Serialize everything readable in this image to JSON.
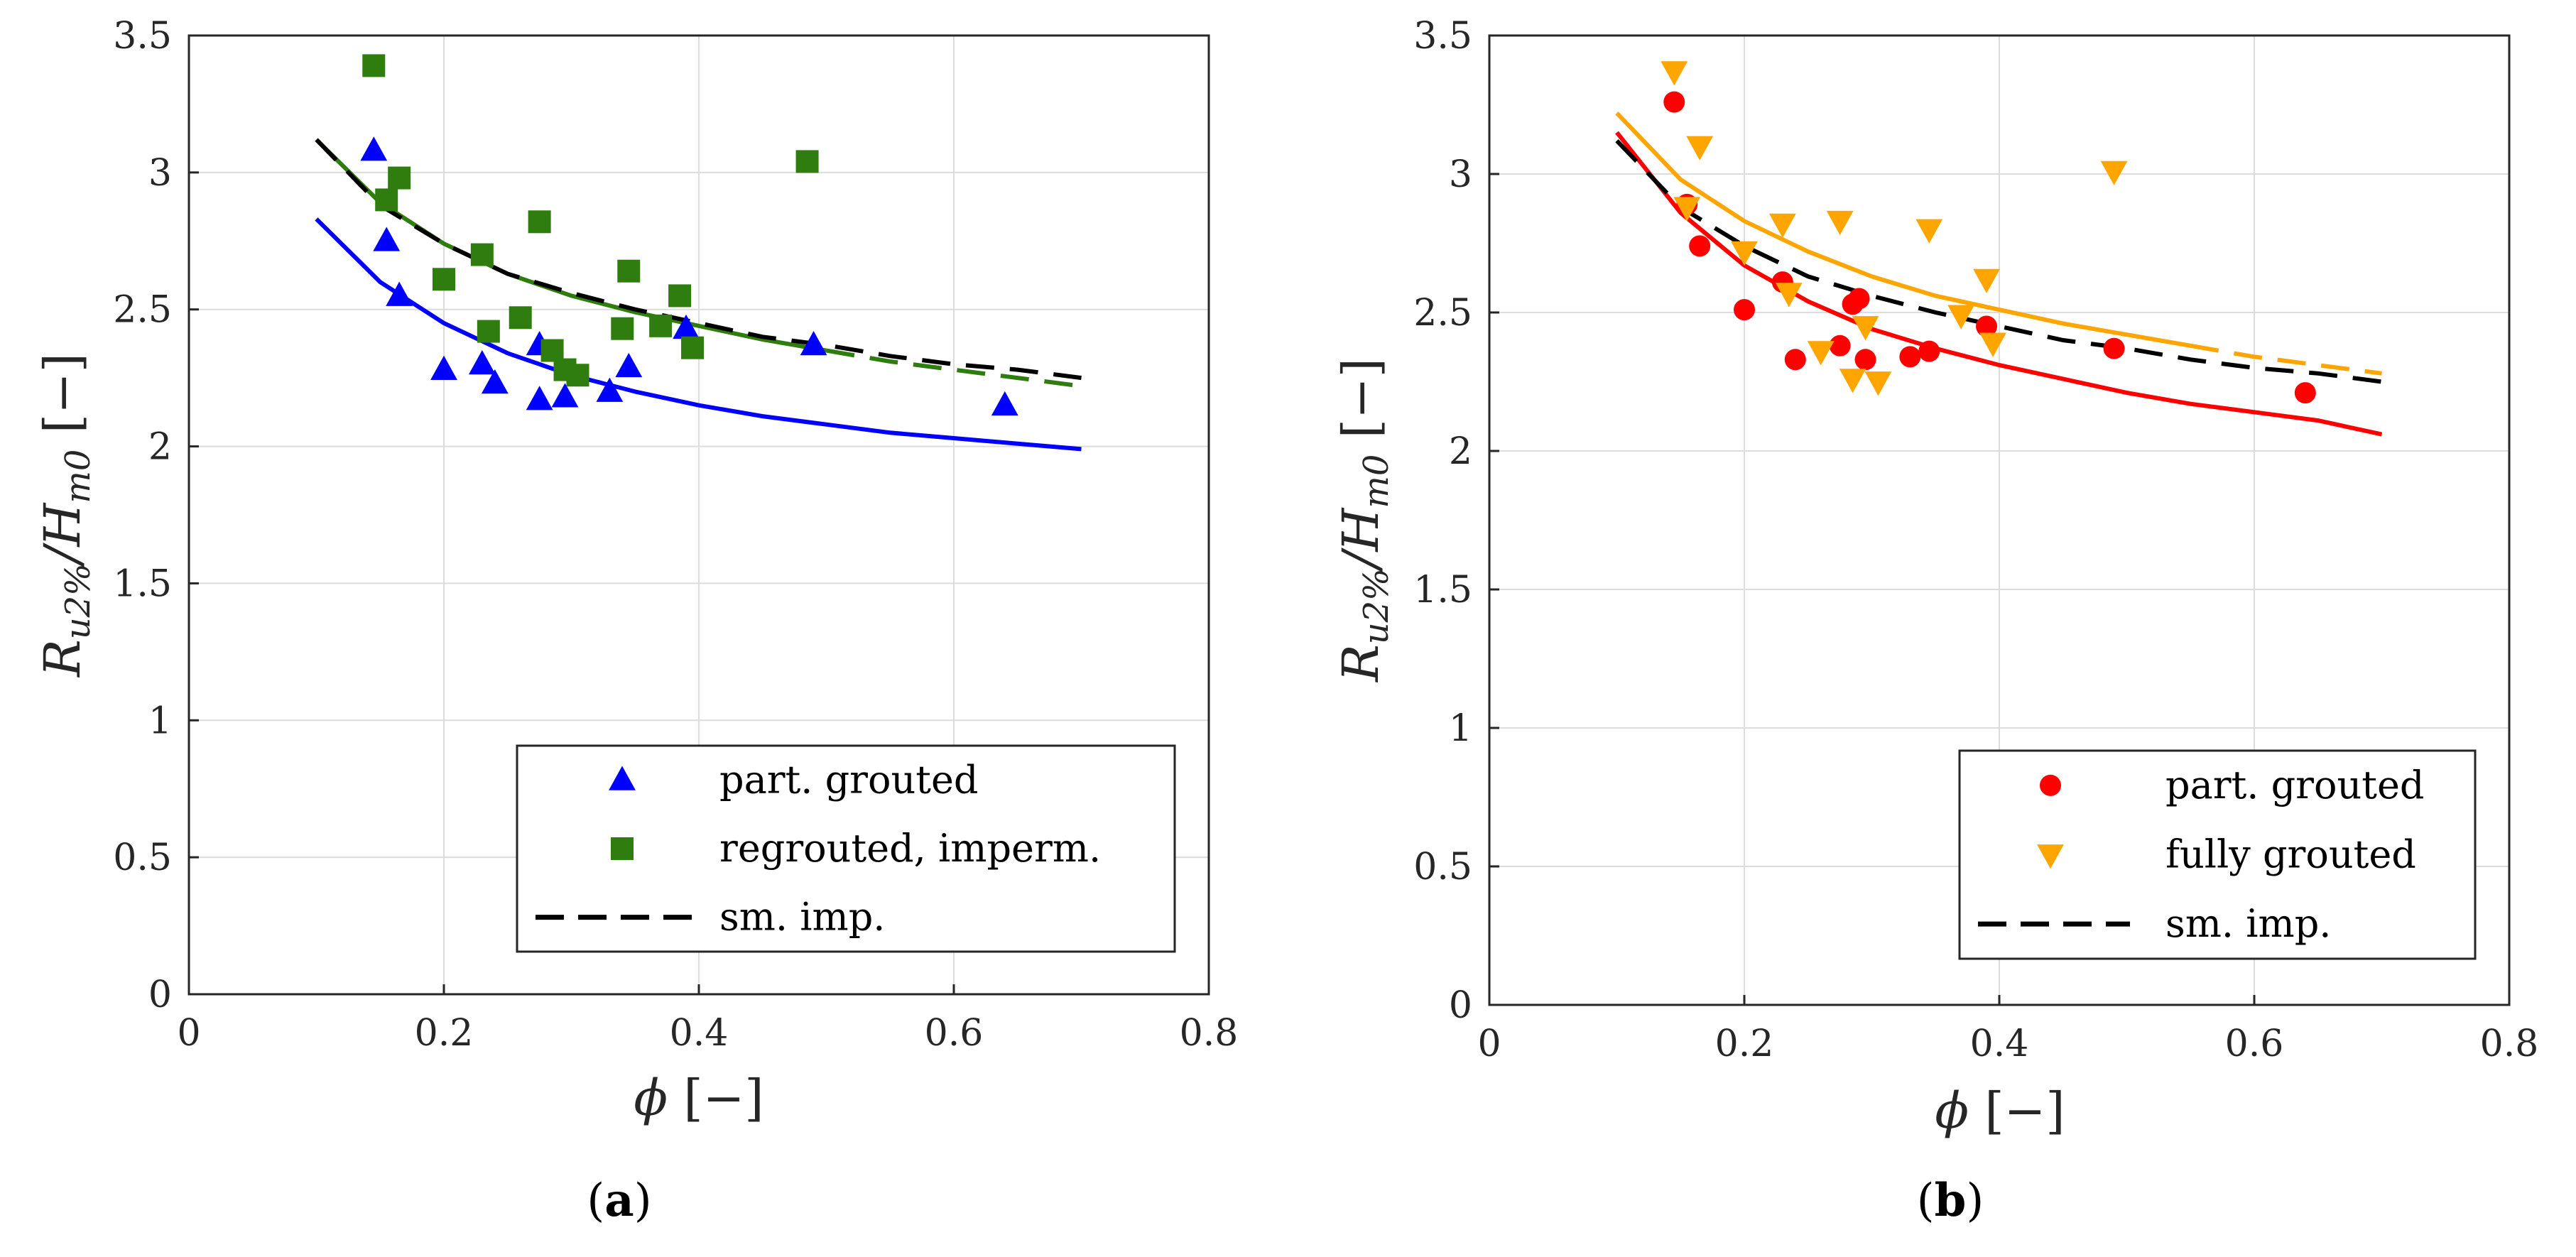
{
  "chart_data": [
    {
      "type": "scatter",
      "panel_label": {
        "open": "(",
        "letter": "a",
        "close": ")"
      },
      "xlabel": "ϕ [−]",
      "ylabel": "Ru2%/Hm0 [−]",
      "xlim": [
        0,
        0.8
      ],
      "ylim": [
        0,
        3.5
      ],
      "xticks": [
        0,
        0.2,
        0.4,
        0.6,
        0.8
      ],
      "xtick_labels": [
        "0",
        "0.2",
        "0.4",
        "0.6",
        "0.8"
      ],
      "yticks": [
        0,
        0.5,
        1,
        1.5,
        2,
        2.5,
        3,
        3.5
      ],
      "ytick_labels": [
        "0",
        "0.5",
        "1",
        "1.5",
        "2",
        "2.5",
        "3",
        "3.5"
      ],
      "grid": true,
      "legend_position": "bottom-right",
      "series": [
        {
          "name": "part. grouted",
          "marker": "triangle-up",
          "color": "#0000ff",
          "x": [
            0.145,
            0.155,
            0.165,
            0.2,
            0.23,
            0.24,
            0.275,
            0.275,
            0.295,
            0.33,
            0.345,
            0.39,
            0.49,
            0.64
          ],
          "y": [
            3.08,
            2.75,
            2.55,
            2.28,
            2.3,
            2.23,
            2.17,
            2.37,
            2.18,
            2.2,
            2.29,
            2.43,
            2.37,
            2.15
          ]
        },
        {
          "name": "regrouted, imperm.",
          "marker": "square",
          "color": "#2e7d0e",
          "x": [
            0.145,
            0.155,
            0.165,
            0.2,
            0.23,
            0.235,
            0.26,
            0.275,
            0.285,
            0.295,
            0.305,
            0.34,
            0.345,
            0.37,
            0.385,
            0.395,
            0.485
          ],
          "y": [
            3.39,
            2.9,
            2.98,
            2.61,
            2.7,
            2.42,
            2.47,
            2.82,
            2.35,
            2.28,
            2.26,
            2.43,
            2.64,
            2.44,
            2.55,
            2.36,
            3.04
          ]
        }
      ],
      "fits": [
        {
          "name": "part. grouted fit",
          "color": "#0000ff",
          "style": "solid",
          "x": [
            0.1,
            0.15,
            0.2,
            0.25,
            0.3,
            0.35,
            0.4,
            0.45,
            0.5,
            0.55,
            0.6,
            0.65,
            0.7
          ],
          "y": [
            2.83,
            2.6,
            2.45,
            2.34,
            2.26,
            2.2,
            2.15,
            2.11,
            2.08,
            2.05,
            2.03,
            2.01,
            1.99
          ]
        },
        {
          "name": "regrouted fit",
          "color": "#2e7d0e",
          "style": "solid-then-dashed",
          "dash_from_x": 0.5,
          "x": [
            0.1,
            0.15,
            0.2,
            0.25,
            0.3,
            0.35,
            0.4,
            0.45,
            0.5,
            0.55,
            0.6,
            0.65,
            0.7
          ],
          "y": [
            3.12,
            2.89,
            2.74,
            2.63,
            2.55,
            2.49,
            2.44,
            2.39,
            2.35,
            2.31,
            2.28,
            2.25,
            2.22
          ]
        },
        {
          "name": "sm. imp.",
          "color": "#000000",
          "style": "dashed",
          "x": [
            0.1,
            0.15,
            0.2,
            0.25,
            0.3,
            0.35,
            0.4,
            0.45,
            0.5,
            0.55,
            0.6,
            0.65,
            0.7
          ],
          "y": [
            3.12,
            2.88,
            2.74,
            2.63,
            2.56,
            2.5,
            2.45,
            2.4,
            2.37,
            2.33,
            2.3,
            2.28,
            2.25
          ]
        }
      ],
      "legend": [
        {
          "label": "part. grouted",
          "kind": "marker",
          "marker": "triangle-up",
          "color": "#0000ff"
        },
        {
          "label": "regrouted, imperm.",
          "kind": "marker",
          "marker": "square",
          "color": "#2e7d0e"
        },
        {
          "label": "sm. imp.",
          "kind": "line",
          "color": "#000000",
          "style": "dashed"
        }
      ]
    },
    {
      "type": "scatter",
      "panel_label": {
        "open": "(",
        "letter": "b",
        "close": ")"
      },
      "xlabel": "ϕ [−]",
      "ylabel": "Ru2%/Hm0 [−]",
      "xlim": [
        0,
        0.8
      ],
      "ylim": [
        0,
        3.5
      ],
      "xticks": [
        0,
        0.2,
        0.4,
        0.6,
        0.8
      ],
      "xtick_labels": [
        "0",
        "0.2",
        "0.4",
        "0.6",
        "0.8"
      ],
      "yticks": [
        0,
        0.5,
        1,
        1.5,
        2,
        2.5,
        3,
        3.5
      ],
      "ytick_labels": [
        "0",
        "0.5",
        "1",
        "1.5",
        "2",
        "2.5",
        "3",
        "3.5"
      ],
      "grid": true,
      "legend_position": "bottom-right",
      "series": [
        {
          "name": "part. grouted",
          "marker": "circle",
          "color": "#ff0000",
          "x": [
            0.145,
            0.155,
            0.165,
            0.2,
            0.23,
            0.24,
            0.275,
            0.285,
            0.29,
            0.295,
            0.33,
            0.345,
            0.39,
            0.49,
            0.64
          ],
          "y": [
            3.26,
            2.89,
            2.74,
            2.51,
            2.61,
            2.33,
            2.38,
            2.53,
            2.55,
            2.33,
            2.34,
            2.36,
            2.45,
            2.37,
            2.21
          ]
        },
        {
          "name": "fully grouted",
          "marker": "triangle-down",
          "color": "#ffa500",
          "x": [
            0.145,
            0.155,
            0.165,
            0.2,
            0.23,
            0.235,
            0.26,
            0.275,
            0.285,
            0.295,
            0.305,
            0.345,
            0.37,
            0.39,
            0.395,
            0.49
          ],
          "y": [
            3.37,
            2.88,
            3.1,
            2.72,
            2.82,
            2.57,
            2.36,
            2.83,
            2.26,
            2.45,
            2.25,
            2.8,
            2.49,
            2.62,
            2.39,
            3.01
          ]
        }
      ],
      "fits": [
        {
          "name": "part. grouted fit",
          "color": "#ff0000",
          "style": "solid",
          "x": [
            0.1,
            0.15,
            0.2,
            0.25,
            0.3,
            0.35,
            0.4,
            0.45,
            0.5,
            0.55,
            0.6,
            0.65,
            0.7
          ],
          "y": [
            3.15,
            2.86,
            2.67,
            2.54,
            2.44,
            2.37,
            2.31,
            2.26,
            2.21,
            2.17,
            2.14,
            2.11,
            2.06
          ]
        },
        {
          "name": "fully grouted fit",
          "color": "#ffa500",
          "style": "solid-then-dashed",
          "dash_from_x": 0.52,
          "x": [
            0.1,
            0.15,
            0.2,
            0.25,
            0.3,
            0.35,
            0.4,
            0.45,
            0.5,
            0.55,
            0.6,
            0.65,
            0.7
          ],
          "y": [
            3.22,
            2.98,
            2.83,
            2.72,
            2.63,
            2.56,
            2.51,
            2.46,
            2.42,
            2.38,
            2.34,
            2.31,
            2.28
          ]
        },
        {
          "name": "sm. imp.",
          "color": "#000000",
          "style": "dashed",
          "x": [
            0.1,
            0.15,
            0.2,
            0.25,
            0.3,
            0.35,
            0.4,
            0.45,
            0.5,
            0.55,
            0.6,
            0.65,
            0.7
          ],
          "y": [
            3.12,
            2.88,
            2.74,
            2.63,
            2.56,
            2.5,
            2.45,
            2.4,
            2.37,
            2.33,
            2.3,
            2.28,
            2.25
          ]
        }
      ],
      "legend": [
        {
          "label": "part. grouted",
          "kind": "marker",
          "marker": "circle",
          "color": "#ff0000"
        },
        {
          "label": "fully grouted",
          "kind": "marker",
          "marker": "triangle-down",
          "color": "#ffa500"
        },
        {
          "label": "sm. imp.",
          "kind": "line",
          "color": "#000000",
          "style": "dashed"
        }
      ]
    }
  ]
}
